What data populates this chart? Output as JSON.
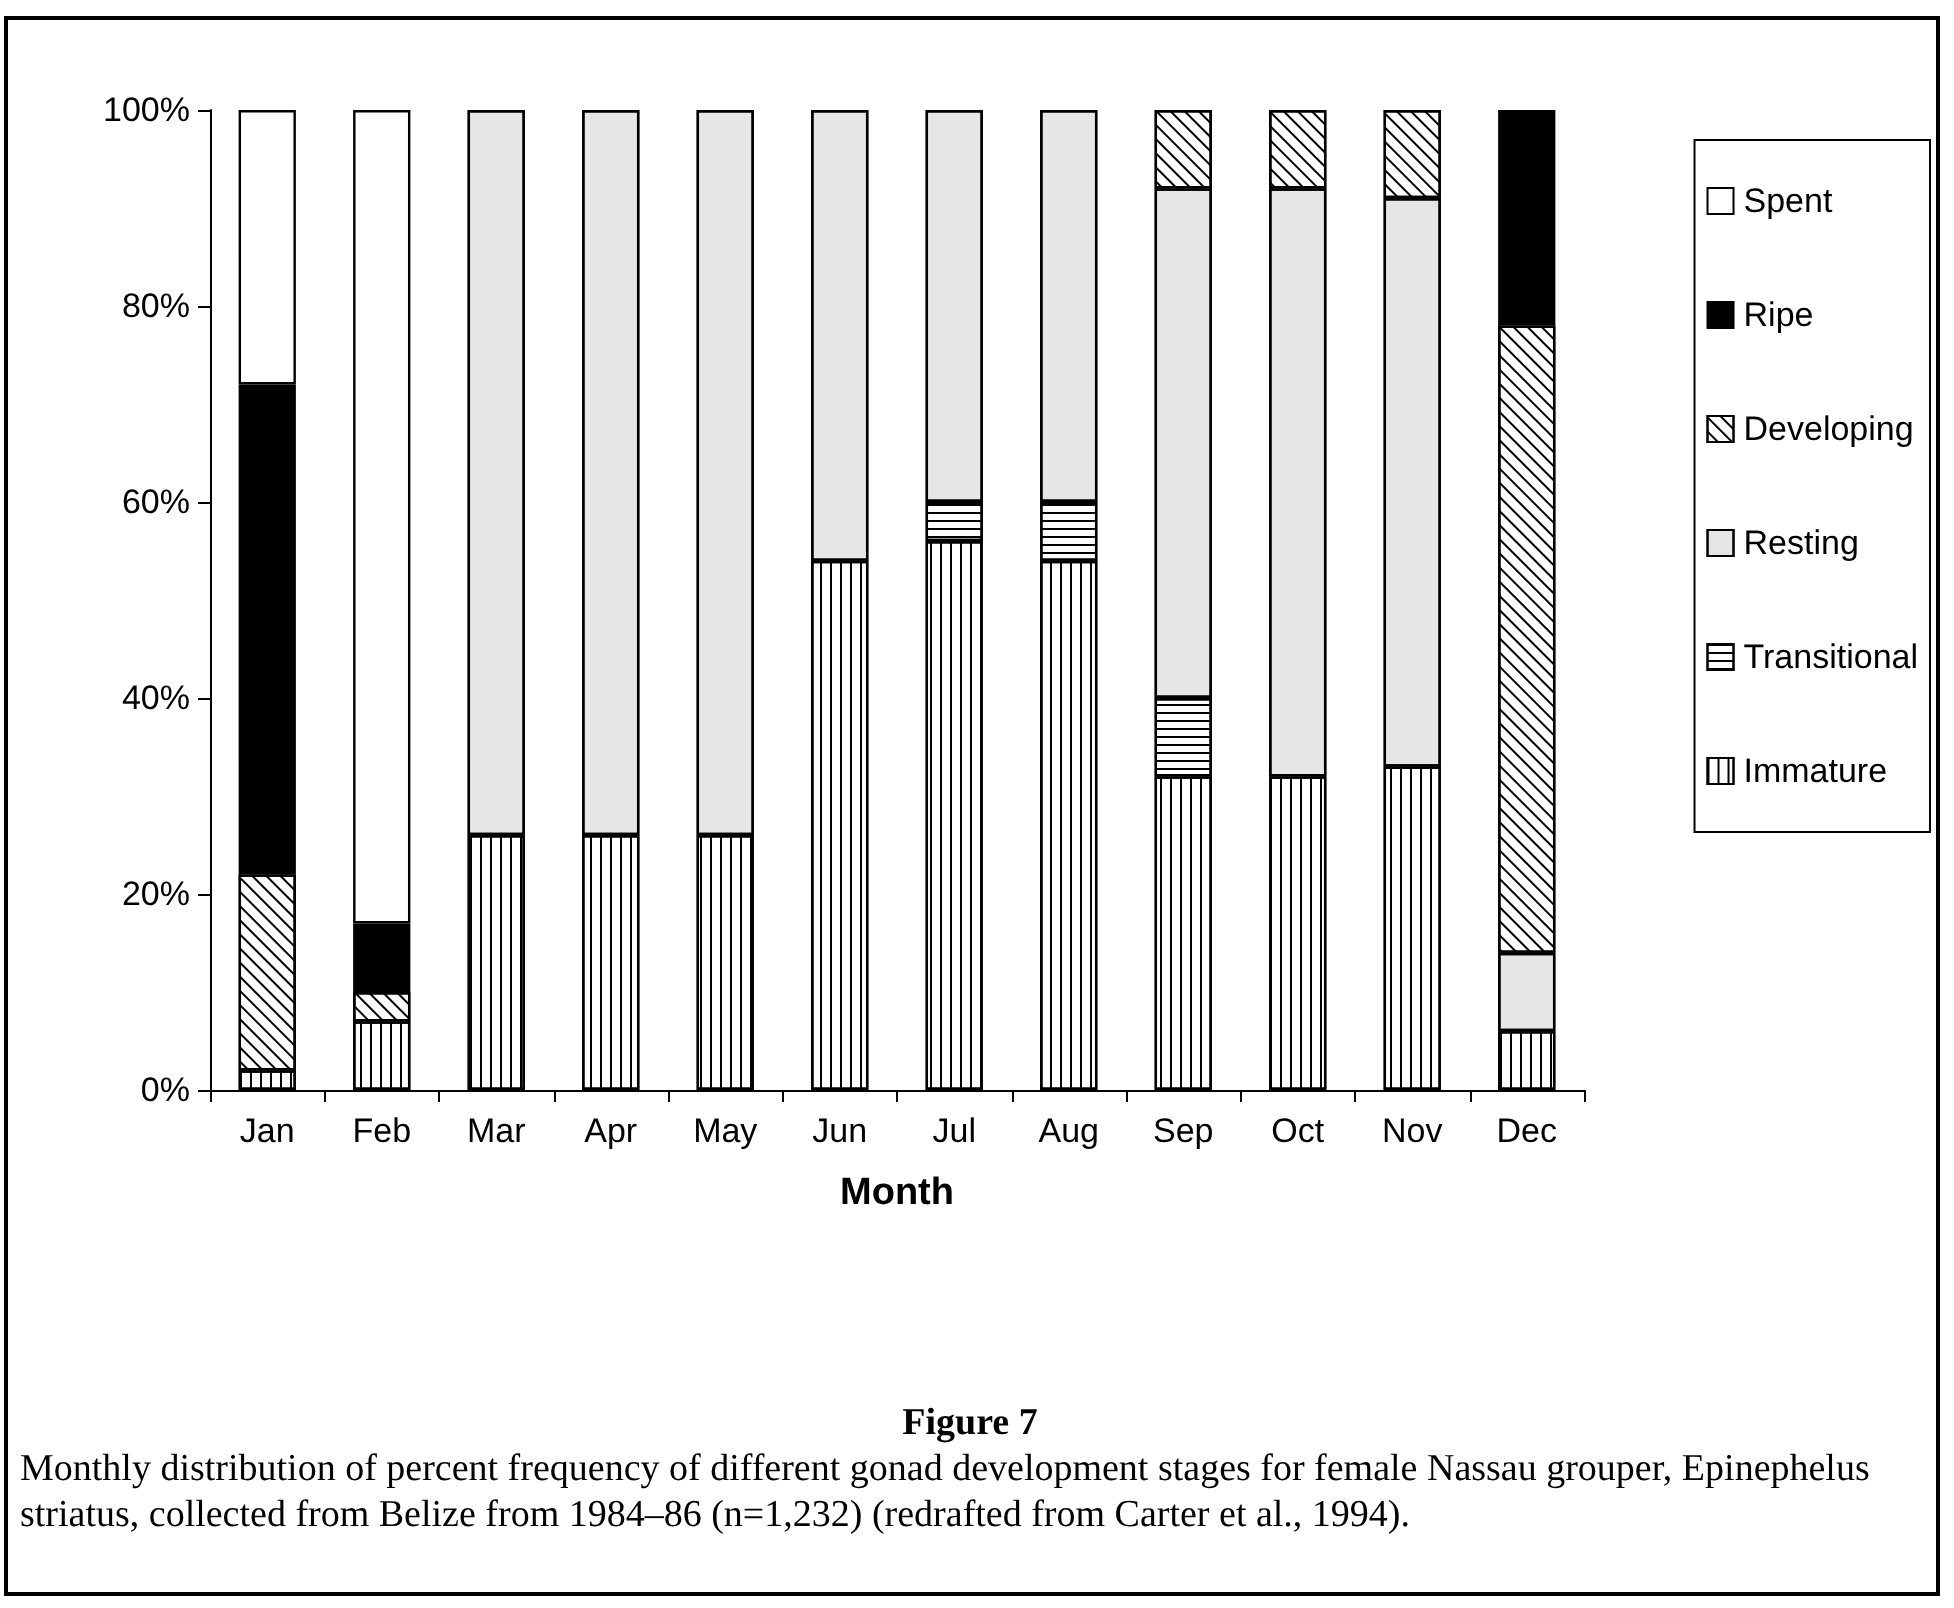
{
  "chart_data": {
    "type": "bar",
    "stacked": true,
    "xlabel": "Month",
    "categories": [
      "Jan",
      "Feb",
      "Mar",
      "Apr",
      "May",
      "Jun",
      "Jul",
      "Aug",
      "Sep",
      "Oct",
      "Nov",
      "Dec"
    ],
    "series": [
      {
        "name": "Immature",
        "color": "#ffffff",
        "values": [
          2,
          7,
          26,
          26,
          26,
          54,
          56,
          54,
          32,
          32,
          33,
          6
        ]
      },
      {
        "name": "Transitional",
        "color": "#ffffff",
        "values": [
          0,
          0,
          0,
          0,
          0,
          0,
          4,
          6,
          8,
          0,
          0,
          0
        ]
      },
      {
        "name": "Resting",
        "color": "#e6e6e6",
        "values": [
          0,
          0,
          74,
          74,
          74,
          46,
          40,
          40,
          52,
          60,
          58,
          8
        ]
      },
      {
        "name": "Developing",
        "color": "#ffffff",
        "values": [
          20,
          3,
          0,
          0,
          0,
          0,
          0,
          0,
          8,
          8,
          9,
          64
        ]
      },
      {
        "name": "Ripe",
        "color": "#000000",
        "values": [
          50,
          7,
          0,
          0,
          0,
          0,
          0,
          0,
          0,
          0,
          0,
          22
        ]
      },
      {
        "name": "Spent",
        "color": "#ffffff",
        "values": [
          28,
          83,
          0,
          0,
          0,
          0,
          0,
          0,
          0,
          0,
          0,
          0
        ]
      }
    ],
    "ylim": [
      0,
      100
    ],
    "yticks": [
      {
        "value": 0,
        "label": "0%"
      },
      {
        "value": 20,
        "label": "20%"
      },
      {
        "value": 40,
        "label": "40%"
      },
      {
        "value": 60,
        "label": "60%"
      },
      {
        "value": 80,
        "label": "80%"
      },
      {
        "value": 100,
        "label": "100%"
      }
    ],
    "grid": false,
    "legend": "right",
    "annotations": [
      "Figure 7",
      "Monthly distribution of percent frequency of different gonad development stages for female Nassau grouper, Epinephelus striatus, collected from Belize from 1984–86 (n=1,232) (redrafted from Carter et al., 1994)."
    ]
  }
}
